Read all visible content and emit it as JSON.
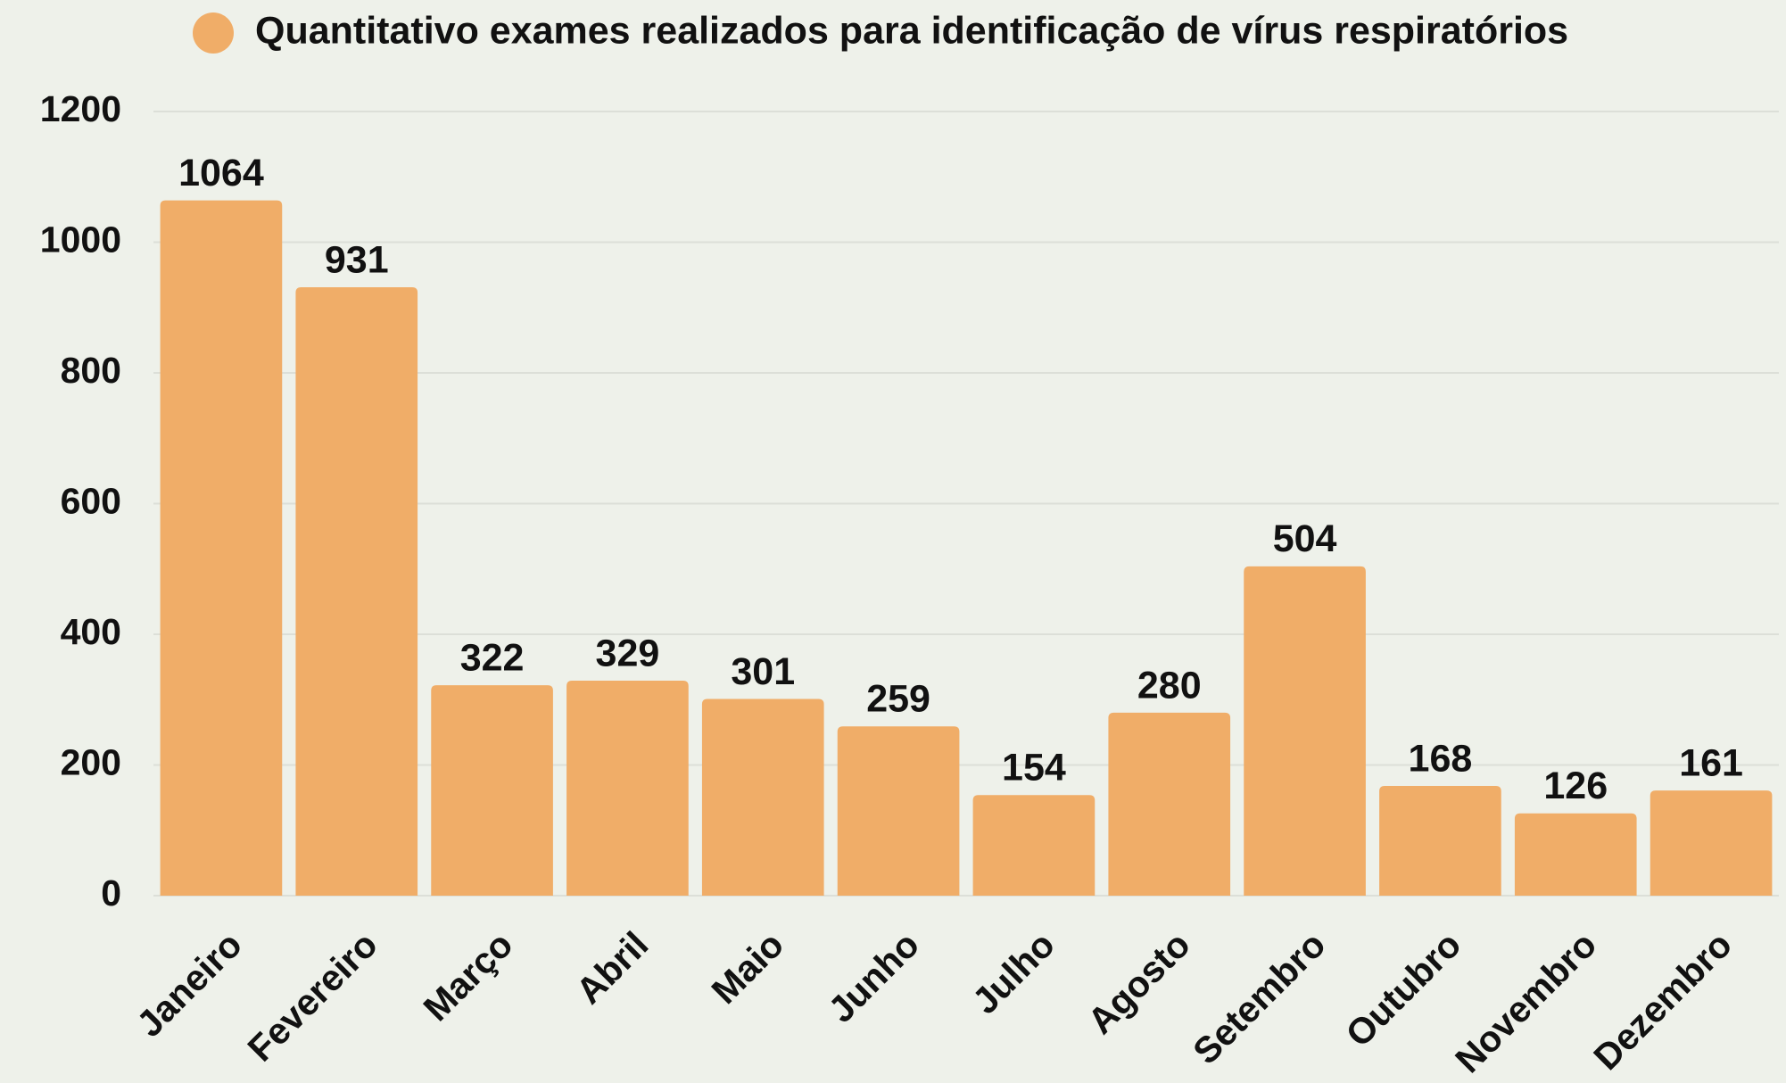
{
  "chart_data": {
    "type": "bar",
    "categories": [
      "Janeiro",
      "Fevereiro",
      "Março",
      "Abril",
      "Maio",
      "Junho",
      "Julho",
      "Agosto",
      "Setembro",
      "Outubro",
      "Novembro",
      "Dezembro"
    ],
    "series": [
      {
        "name": "Quantitativo exames realizados para identificação de vírus respiratórios",
        "color": "#f0ad68",
        "values": [
          1064,
          931,
          322,
          329,
          301,
          259,
          154,
          280,
          504,
          168,
          126,
          161
        ]
      }
    ],
    "ylim": [
      0,
      1200
    ],
    "yticks": [
      0,
      200,
      400,
      600,
      800,
      1000,
      1200
    ],
    "grid": true,
    "legend": "top"
  }
}
